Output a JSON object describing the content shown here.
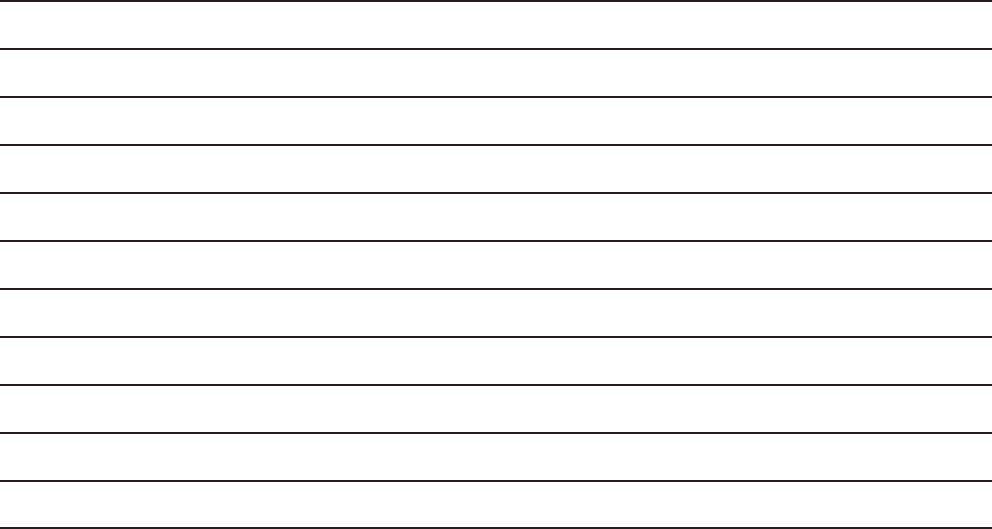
{
  "page": {
    "background_color": "#ffffff",
    "line_color": "#231f20",
    "line_count": 12
  }
}
